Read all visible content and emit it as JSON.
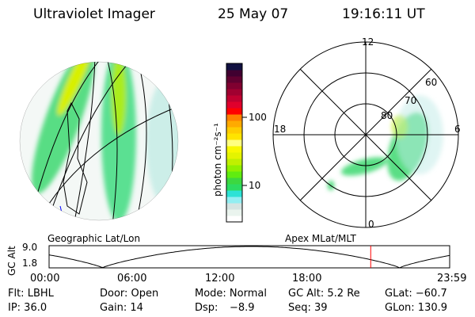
{
  "header": {
    "instrument": "Ultraviolet Imager",
    "date": "25 May 07",
    "time": "19:16:11 UT"
  },
  "colorbar": {
    "label": "photon cm⁻²s⁻¹",
    "ticks": [
      "100",
      "10"
    ],
    "colors": [
      "#ffffff",
      "#eaf4ee",
      "#d4e4e2",
      "#92eef2",
      "#2ce2d6",
      "#2cdc60",
      "#3cd840",
      "#60ec10",
      "#90f000",
      "#c0f000",
      "#e4f400",
      "#f8f800",
      "#ffff80",
      "#ffe400",
      "#ffcc00",
      "#ffaa00",
      "#ff8000",
      "#ff0000",
      "#e0002c",
      "#c00030",
      "#a00030",
      "#800030",
      "#600030",
      "#400030",
      "#101040"
    ]
  },
  "polar": {
    "mlt_labels": {
      "top": "12",
      "bottom": "0",
      "left": "18",
      "right": "6"
    },
    "lat_labels": [
      "80",
      "70",
      "60"
    ]
  },
  "left_panel_label": "Geographic Lat/Lon",
  "right_panel_label": "Apex MLat/MLT",
  "altitude_plot": {
    "ylabel": "GC Alt",
    "yticks": [
      "9.0",
      "1.8"
    ],
    "xticks": [
      "00:00",
      "06:00",
      "12:00",
      "18:00",
      "23:59"
    ],
    "current_time_hours": 19.27,
    "current_marker_color": "#ff0000"
  },
  "status": {
    "filter": "Flt: LBHL",
    "door": "Door: Open",
    "mode": "Mode: Normal",
    "gc_alt": "GC Alt: 5.2 Re",
    "glat": "GLat: −60.7",
    "ip": "IP: 36.0",
    "gain": "Gain: 14",
    "dsp_label": "Dsp:",
    "dsp_value": "−8.9",
    "seq": "Seq: 39",
    "glon": "GLon: 130.9"
  }
}
